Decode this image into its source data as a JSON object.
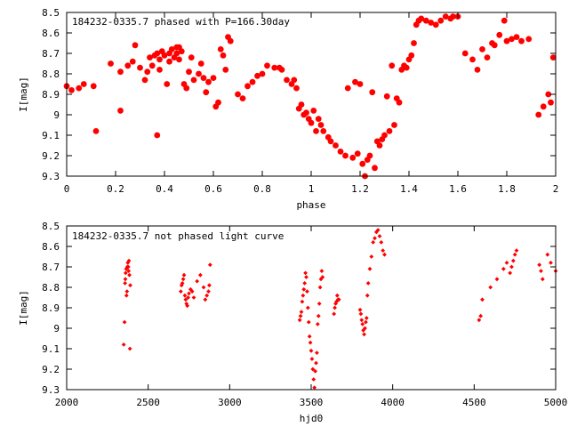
{
  "chart_data": [
    {
      "type": "scatter",
      "title": "184232-0335.7 phased with P=166.30day",
      "xlabel": "phase",
      "ylabel": "I[mag]",
      "xlim": [
        0,
        2
      ],
      "ylim": [
        9.3,
        8.5
      ],
      "y_inverted": true,
      "grid": false,
      "marker": "filled-circle-large",
      "color": "#ff0000",
      "xticks": [
        "0",
        "0.2",
        "0.4",
        "0.6",
        "0.8",
        "1",
        "1.2",
        "1.4",
        "1.6",
        "1.8",
        "2"
      ],
      "yticks": [
        "8.5",
        "8.6",
        "8.7",
        "8.8",
        "8.9",
        "9",
        "9.1",
        "9.2",
        "9.3"
      ],
      "x": [
        0.0,
        0.02,
        0.05,
        0.07,
        0.11,
        0.12,
        0.18,
        0.22,
        0.22,
        0.25,
        0.27,
        0.28,
        0.3,
        0.32,
        0.33,
        0.34,
        0.35,
        0.36,
        0.37,
        0.37,
        0.38,
        0.38,
        0.39,
        0.4,
        0.41,
        0.42,
        0.42,
        0.43,
        0.44,
        0.45,
        0.45,
        0.46,
        0.46,
        0.47,
        0.48,
        0.49,
        0.5,
        0.51,
        0.52,
        0.54,
        0.55,
        0.56,
        0.57,
        0.58,
        0.6,
        0.61,
        0.62,
        0.63,
        0.64,
        0.65,
        0.66,
        0.67,
        0.7,
        0.72,
        0.74,
        0.76,
        0.78,
        0.8,
        0.82,
        0.85,
        0.87,
        0.88,
        0.9,
        0.92,
        0.93,
        0.94,
        0.95,
        0.96,
        0.97,
        0.98,
        0.99,
        1.0,
        1.01,
        1.02,
        1.03,
        1.04,
        1.05,
        1.07,
        1.08,
        1.1,
        1.12,
        1.14,
        1.15,
        1.17,
        1.18,
        1.19,
        1.2,
        1.21,
        1.22,
        1.23,
        1.24,
        1.25,
        1.26,
        1.27,
        1.28,
        1.29,
        1.3,
        1.31,
        1.32,
        1.33,
        1.34,
        1.35,
        1.36,
        1.37,
        1.38,
        1.39,
        1.4,
        1.41,
        1.42,
        1.43,
        1.44,
        1.45,
        1.47,
        1.49,
        1.51,
        1.53,
        1.55,
        1.57,
        1.58,
        1.6,
        1.63,
        1.66,
        1.68,
        1.7,
        1.72,
        1.74,
        1.75,
        1.77,
        1.79,
        1.8,
        1.82,
        1.84,
        1.86,
        1.89,
        1.93,
        1.95,
        1.97,
        1.98,
        1.99
      ],
      "y": [
        8.86,
        8.88,
        8.87,
        8.85,
        8.86,
        9.08,
        8.75,
        8.79,
        8.98,
        8.76,
        8.74,
        8.66,
        8.77,
        8.83,
        8.79,
        8.72,
        8.76,
        8.71,
        8.7,
        9.1,
        8.78,
        8.73,
        8.69,
        8.71,
        8.85,
        8.7,
        8.74,
        8.68,
        8.72,
        8.67,
        8.7,
        8.73,
        8.67,
        8.69,
        8.85,
        8.87,
        8.79,
        8.72,
        8.83,
        8.8,
        8.75,
        8.82,
        8.89,
        8.84,
        8.82,
        8.96,
        8.94,
        8.68,
        8.71,
        8.78,
        8.62,
        8.64,
        8.9,
        8.92,
        8.86,
        8.84,
        8.81,
        8.8,
        8.76,
        8.77,
        8.77,
        8.78,
        8.83,
        8.85,
        8.83,
        8.87,
        8.97,
        8.95,
        9.0,
        8.99,
        9.02,
        9.04,
        8.98,
        9.08,
        9.02,
        9.05,
        9.08,
        9.11,
        9.13,
        9.15,
        9.18,
        9.2,
        8.87,
        9.21,
        8.84,
        9.19,
        8.85,
        9.24,
        9.3,
        9.22,
        9.2,
        8.89,
        9.26,
        9.13,
        9.15,
        9.12,
        9.1,
        8.91,
        9.08,
        8.76,
        9.05,
        8.92,
        8.94,
        8.78,
        8.76,
        8.77,
        8.73,
        8.71,
        8.65,
        8.56,
        8.54,
        8.53,
        8.54,
        8.55,
        8.56,
        8.54,
        8.52,
        8.53,
        8.52,
        8.52,
        8.7,
        8.73,
        8.78,
        8.68,
        8.72,
        8.65,
        8.66,
        8.61,
        8.54,
        8.64,
        8.63,
        8.62,
        8.64,
        8.63,
        9.0,
        8.96,
        8.9,
        8.94,
        8.72
      ]
    },
    {
      "type": "scatter",
      "title": "184232-0335.7 not phased light curve",
      "xlabel": "hjd0",
      "ylabel": "I[mag]",
      "xlim": [
        2000,
        5000
      ],
      "ylim": [
        9.3,
        8.5
      ],
      "y_inverted": true,
      "grid": false,
      "marker": "small-diamond",
      "color": "#ff0000",
      "xticks": [
        "2000",
        "2500",
        "3000",
        "3500",
        "4000",
        "4500",
        "5000"
      ],
      "yticks": [
        "8.5",
        "8.6",
        "8.7",
        "8.8",
        "8.9",
        "9",
        "9.1",
        "9.2",
        "9.3"
      ],
      "x": [
        2350,
        2355,
        2358,
        2360,
        2362,
        2365,
        2367,
        2370,
        2372,
        2375,
        2378,
        2380,
        2382,
        2385,
        2388,
        2390,
        2700,
        2705,
        2710,
        2715,
        2720,
        2725,
        2730,
        2735,
        2740,
        2745,
        2750,
        2760,
        2770,
        2780,
        2800,
        2820,
        2840,
        2850,
        2860,
        2870,
        2875,
        2880,
        3430,
        3435,
        3440,
        3445,
        3450,
        3455,
        3460,
        3465,
        3470,
        3475,
        3480,
        3485,
        3490,
        3495,
        3500,
        3505,
        3510,
        3515,
        3520,
        3525,
        3530,
        3535,
        3540,
        3545,
        3550,
        3555,
        3560,
        3565,
        3570,
        3640,
        3645,
        3650,
        3655,
        3660,
        3665,
        3670,
        3800,
        3805,
        3810,
        3815,
        3820,
        3825,
        3830,
        3835,
        3840,
        3845,
        3850,
        3860,
        3870,
        3880,
        3890,
        3900,
        3910,
        3920,
        3930,
        3940,
        3950,
        4530,
        4540,
        4550,
        4600,
        4640,
        4680,
        4700,
        4720,
        4730,
        4740,
        4750,
        4760,
        4900,
        4910,
        4920,
        4950,
        4970,
        5000
      ],
      "y": [
        9.08,
        8.97,
        8.78,
        8.76,
        8.73,
        8.71,
        8.84,
        8.82,
        8.7,
        8.68,
        8.7,
        8.72,
        8.67,
        8.74,
        9.1,
        8.79,
        8.82,
        8.79,
        8.78,
        8.76,
        8.74,
        8.84,
        8.86,
        8.88,
        8.89,
        8.85,
        8.83,
        8.81,
        8.82,
        8.85,
        8.77,
        8.74,
        8.8,
        8.86,
        8.84,
        8.82,
        8.79,
        8.69,
        8.96,
        8.94,
        8.92,
        8.87,
        8.84,
        8.81,
        8.78,
        8.73,
        8.75,
        8.82,
        8.9,
        8.97,
        9.04,
        9.07,
        9.11,
        9.15,
        9.2,
        9.25,
        9.29,
        9.21,
        9.17,
        9.12,
        8.98,
        8.94,
        8.88,
        8.8,
        8.76,
        8.72,
        8.75,
        8.93,
        8.9,
        8.88,
        8.87,
        8.84,
        8.86,
        8.86,
        8.91,
        8.93,
        8.96,
        8.98,
        9.01,
        9.03,
        9.0,
        8.97,
        8.95,
        8.84,
        8.78,
        8.71,
        8.65,
        8.58,
        8.56,
        8.53,
        8.52,
        8.55,
        8.58,
        8.62,
        8.64,
        8.96,
        8.94,
        8.86,
        8.8,
        8.76,
        8.71,
        8.68,
        8.73,
        8.7,
        8.67,
        8.64,
        8.62,
        8.69,
        8.72,
        8.76,
        8.64,
        8.68,
        8.72
      ]
    }
  ]
}
